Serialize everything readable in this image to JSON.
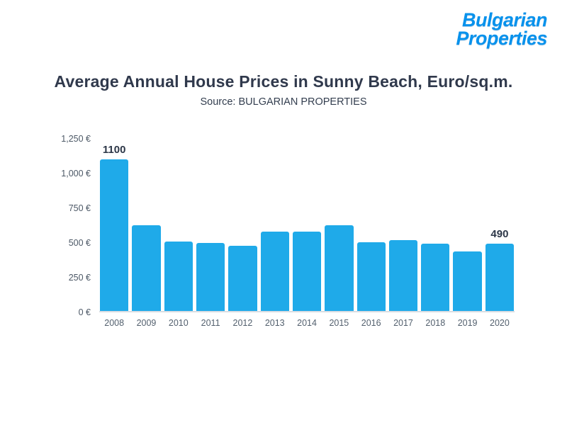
{
  "logo": {
    "line1": "Bulgarian",
    "line2": "Properties",
    "color": "#0892ec"
  },
  "chart_data": {
    "type": "bar",
    "title": "Average Annual House Prices in Sunny Beach, Euro/sq.m.",
    "subtitle": "Source: BULGARIAN PROPERTIES",
    "categories": [
      "2008",
      "2009",
      "2010",
      "2011",
      "2012",
      "2013",
      "2014",
      "2015",
      "2016",
      "2017",
      "2018",
      "2019",
      "2020"
    ],
    "values": [
      1100,
      625,
      505,
      495,
      475,
      575,
      575,
      620,
      500,
      515,
      490,
      430,
      490
    ],
    "data_labels": [
      "1100",
      "",
      "",
      "",
      "",
      "",
      "",
      "",
      "",
      "",
      "",
      "",
      "490"
    ],
    "ylabel": "",
    "xlabel": "",
    "ylim": [
      0,
      1250
    ],
    "ytick_values": [
      0,
      250,
      500,
      750,
      1000,
      1250
    ],
    "ytick_labels": [
      "0 €",
      "250 €",
      "500 €",
      "750 €",
      "1,000 €",
      "1,250 €"
    ],
    "bar_color": "#1faae9",
    "grid": false,
    "legend": false
  }
}
